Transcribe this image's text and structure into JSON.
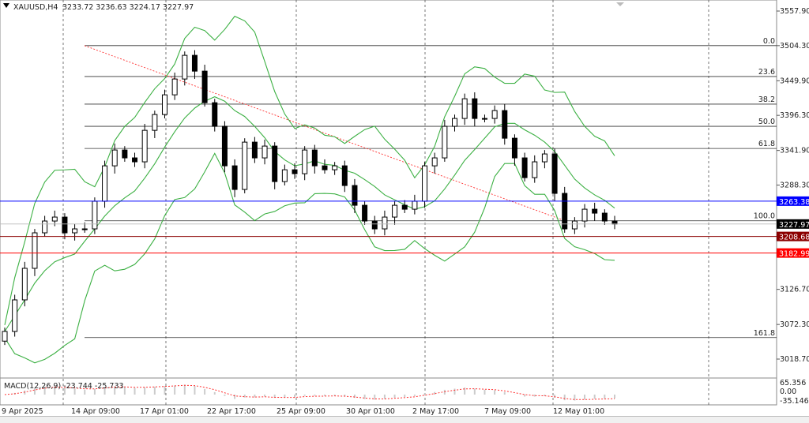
{
  "header": {
    "symbol": "XAUUSD,H4",
    "ohlc": "3233.72 3236.63 3224.17 3227.97"
  },
  "chart_data": {
    "type": "candlestick",
    "title": "XAUUSD,H4",
    "ylim": [
      3000.0,
      3575.0
    ],
    "y_ticks": [
      "3557.90",
      "3504.30",
      "3449.90",
      "3396.30",
      "3341.90",
      "3288.30",
      "3126.70",
      "3072.30",
      "3018.70"
    ],
    "x_ticks": [
      "9 Apr 2025",
      "14 Apr 09:00",
      "17 Apr 01:00",
      "22 Apr 17:00",
      "25 Apr 09:00",
      "30 Apr 01:00",
      "2 May 17:00",
      "7 May 09:00",
      "12 May 01:00"
    ],
    "close": [
      3061.5,
      3110.4,
      3159.3,
      3214.3,
      3232.6,
      3238.7,
      3214.3,
      3220.4,
      3220.4,
      3263.2,
      3318.1,
      3342.6,
      3330.4,
      3324.3,
      3373.1,
      3397.6,
      3428.1,
      3452.6,
      3489.3,
      3464.8,
      3415.9,
      3379.3,
      3318.1,
      3281.5,
      3354.8,
      3330.4,
      3348.7,
      3293.7,
      3312.0,
      3305.9,
      3342.6,
      3318.1,
      3312.0,
      3318.1,
      3287.6,
      3257.0,
      3232.6,
      3220.4,
      3238.7,
      3257.0,
      3250.9,
      3263.2,
      3318.1,
      3330.4,
      3379.3,
      3391.5,
      3422.0,
      3391.5,
      3391.5,
      3403.7,
      3360.9,
      3330.4,
      3299.8,
      3324.3,
      3336.5,
      3275.4,
      3220.4,
      3232.6,
      3250.9,
      3244.8,
      3232.6,
      3227.97
    ],
    "last_price": "3227.97",
    "grid": true,
    "indicators": {
      "bollinger": "Bollinger Bands",
      "macd": {
        "label": "MACD(12,26,9) -23.744 -25.733",
        "axis": [
          "65.356",
          "0.00",
          "-35.146"
        ]
      }
    },
    "fibonacci": [
      {
        "label": "0.0",
        "price": 3504.3
      },
      {
        "label": "23.6",
        "price": 3456.5
      },
      {
        "label": "38.2",
        "price": 3413.7
      },
      {
        "label": "50.0",
        "price": 3379.3
      },
      {
        "label": "61.8",
        "price": 3345.0
      },
      {
        "label": "100.0",
        "price": 3233.0
      },
      {
        "label": "161.8",
        "price": 3052.0
      }
    ],
    "price_lines": [
      {
        "label": "3263.38",
        "price": 3263.38,
        "color": "#0000ff"
      },
      {
        "label": "3208.68",
        "price": 3208.68,
        "color": "#8b0000"
      },
      {
        "label": "3182.99",
        "price": 3182.99,
        "color": "#ff0000"
      }
    ],
    "colors": {
      "band": "#3cb043",
      "trend": "#ff3030",
      "candle": "#000000"
    }
  }
}
